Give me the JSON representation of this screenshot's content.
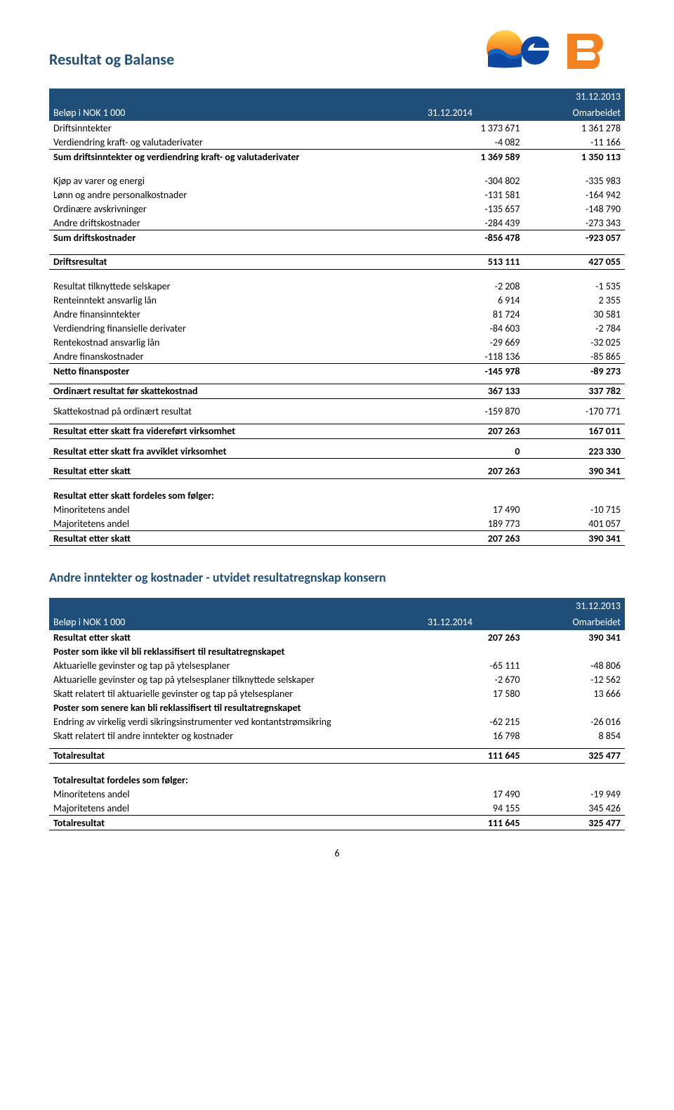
{
  "page": {
    "title": "Resultat og Balanse",
    "number": "6"
  },
  "colors": {
    "heading": "#1f4e79",
    "header_bg": "#1f4e79",
    "header_text": "#ffffff",
    "text": "#000000"
  },
  "table1": {
    "header": {
      "c1": "Beløp i NOK 1 000",
      "c2": "31.12.2014",
      "c3_top": "31.12.2013",
      "c3_bot": "Omarbeidet"
    },
    "rows": [
      {
        "l": "Driftsinntekter",
        "a": "1 373 671",
        "b": "1 361 278"
      },
      {
        "l": "Verdiendring kraft- og valutaderivater",
        "a": "-4 082",
        "b": "-11 166"
      },
      {
        "l": "Sum driftsinntekter og verdiendring kraft- og valutaderivater",
        "a": "1 369 589",
        "b": "1 350 113",
        "bold": true,
        "lineAbove": true
      },
      {
        "spacer": true
      },
      {
        "l": "Kjøp av varer og energi",
        "a": "-304 802",
        "b": "-335 983"
      },
      {
        "l": "Lønn og andre personalkostnader",
        "a": "-131 581",
        "b": "-164 942"
      },
      {
        "l": "Ordinære avskrivninger",
        "a": "-135 657",
        "b": "-148 790"
      },
      {
        "l": "Andre driftskostnader",
        "a": "-284 439",
        "b": "-273 343"
      },
      {
        "l": "Sum driftskostnader",
        "a": "-856 478",
        "b": "-923 057",
        "bold": true,
        "lineAbove": true
      },
      {
        "spacer": true
      },
      {
        "l": "Driftsresultat",
        "a": "513 111",
        "b": "427 055",
        "bold": true,
        "lineAbove": true,
        "lineBelow": true
      },
      {
        "spacer": true
      },
      {
        "l": "Resultat tilknyttede selskaper",
        "a": "-2 208",
        "b": "-1 535"
      },
      {
        "l": "Renteinntekt ansvarlig lån",
        "a": "6 914",
        "b": "2 355"
      },
      {
        "l": "Andre finansinntekter",
        "a": "81 724",
        "b": "30 581"
      },
      {
        "l": "Verdiendring finansielle derivater",
        "a": "-84 603",
        "b": "-2 784"
      },
      {
        "l": "Rentekostnad ansvarlig lån",
        "a": "-29 669",
        "b": "-32 025"
      },
      {
        "l": "Andre finanskostnader",
        "a": "-118 136",
        "b": "-85 865"
      },
      {
        "l": "Netto finansposter",
        "a": "-145 978",
        "b": "-89 273",
        "bold": true,
        "lineAbove": true
      },
      {
        "spacerSm": true
      },
      {
        "l": "Ordinært resultat før skattekostnad",
        "a": "367 133",
        "b": "337 782",
        "bold": true,
        "lineAbove": true,
        "lineBelow": true
      },
      {
        "spacerSm": true
      },
      {
        "l": "Skattekostnad på ordinært resultat",
        "a": "-159 870",
        "b": "-170 771"
      },
      {
        "spacerSm": true
      },
      {
        "l": "Resultat etter skatt fra videreført virksomhet",
        "a": "207 263",
        "b": "167 011",
        "bold": true,
        "lineAbove": true,
        "lineBelow": true
      },
      {
        "spacerSm": true
      },
      {
        "l": "Resultat etter skatt fra avviklet virksomhet",
        "a": "0",
        "b": "223 330",
        "bold": true,
        "lineBelow": true
      },
      {
        "spacerSm": true
      },
      {
        "l": "Resultat etter skatt",
        "a": "207 263",
        "b": "390 341",
        "bold": true,
        "lineBelow": true
      },
      {
        "spacer": true
      },
      {
        "l": "Resultat etter skatt fordeles som følger:",
        "a": "",
        "b": "",
        "bold": true
      },
      {
        "l": "Minoritetens andel",
        "a": "17 490",
        "b": "-10 715"
      },
      {
        "l": "Majoritetens andel",
        "a": "189 773",
        "b": "401 057"
      },
      {
        "l": "Resultat etter skatt",
        "a": "207 263",
        "b": "390 341",
        "bold": true,
        "lineAbove": true,
        "lineBelow": true
      }
    ]
  },
  "section2": {
    "title": "Andre inntekter og kostnader - utvidet resultatregnskap konsern",
    "header": {
      "c1": "Beløp i NOK 1 000",
      "c2": "31.12.2014",
      "c3_top": "31.12.2013",
      "c3_bot": "Omarbeidet"
    },
    "rows": [
      {
        "l": "Resultat etter skatt",
        "a": "207 263",
        "b": "390 341",
        "bold": true
      },
      {
        "l": "Poster som ikke vil bli reklassifisert til resultatregnskapet",
        "a": "",
        "b": "",
        "bold": true
      },
      {
        "l": "Aktuarielle gevinster og tap på ytelsesplaner",
        "a": "-65 111",
        "b": "-48 806"
      },
      {
        "l": "Aktuarielle gevinster og tap på ytelsesplaner tilknyttede selskaper",
        "a": "-2 670",
        "b": "-12 562"
      },
      {
        "l": "Skatt relatert til aktuarielle gevinster og tap på ytelsesplaner",
        "a": "17 580",
        "b": "13 666"
      },
      {
        "l": "Poster som senere kan bli reklassifisert til resultatregnskapet",
        "a": "",
        "b": "",
        "bold": true
      },
      {
        "l": "Endring av virkelig verdi sikringsinstrumenter ved kontantstrømsikring",
        "a": "-62 215",
        "b": "-26 016"
      },
      {
        "l": "Skatt relatert til andre inntekter og kostnader",
        "a": "16 798",
        "b": "8 854"
      },
      {
        "spacerSm": true
      },
      {
        "l": "Totalresultat",
        "a": "111 645",
        "b": "325 477",
        "bold": true,
        "lineAbove": true,
        "lineBelow": true
      },
      {
        "spacer": true
      },
      {
        "l": "Totalresultat fordeles som følger:",
        "a": "",
        "b": "",
        "bold": true
      },
      {
        "l": "Minoritetens andel",
        "a": "17 490",
        "b": "-19 949"
      },
      {
        "l": "Majoritetens andel",
        "a": "94 155",
        "b": "345 426"
      },
      {
        "l": "Totalresultat",
        "a": "111 645",
        "b": "325 477",
        "bold": true,
        "lineAbove": true,
        "lineBelow": true
      }
    ]
  }
}
